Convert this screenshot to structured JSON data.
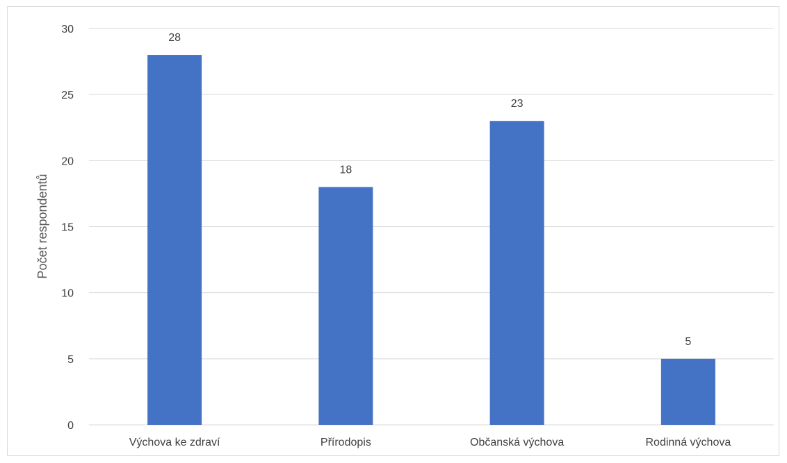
{
  "chart_data": {
    "type": "bar",
    "title": "",
    "xlabel": "",
    "ylabel": "Počet respondentů",
    "categories": [
      "Výchova ke zdraví",
      "Přírodopis",
      "Občanská výchova",
      "Rodinná výchova"
    ],
    "values": [
      28,
      18,
      23,
      5
    ],
    "data_labels": [
      "28",
      "18",
      "23",
      "5"
    ],
    "ylim": [
      0,
      30
    ],
    "yticks": [
      0,
      5,
      10,
      15,
      20,
      25,
      30
    ],
    "ytick_labels": [
      "0",
      "5",
      "10",
      "15",
      "20",
      "25",
      "30"
    ],
    "grid": true,
    "legend": "none",
    "bar_color": "#4472c4",
    "grid_color": "#d9d9d9"
  }
}
